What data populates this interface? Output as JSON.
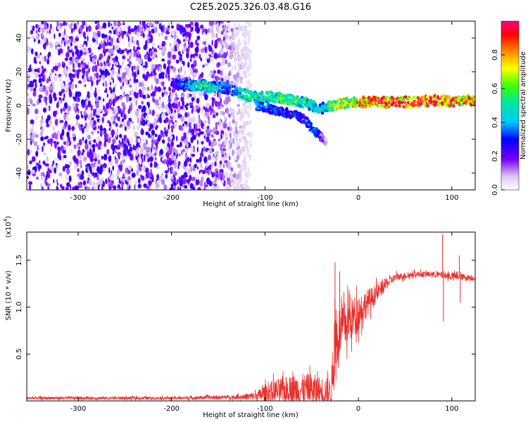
{
  "title": "C2E5.2025.326.03.48.G16",
  "chart_data": [
    {
      "type": "heatmap",
      "name": "spectrogram",
      "xlabel": "Height of straight line (km)",
      "ylabel": "Frequency (Hz)",
      "xlim": [
        -355,
        125
      ],
      "ylim": [
        -50,
        50
      ],
      "x_ticks": [
        -300,
        -200,
        -100,
        0,
        100
      ],
      "x_tick_labels": [
        "-300",
        "-200",
        "-100",
        "0",
        "100"
      ],
      "y_ticks": [
        -40,
        -20,
        0,
        20,
        40
      ],
      "y_tick_labels": [
        "-40",
        "-20",
        "0",
        "20",
        "40"
      ],
      "noise_region": {
        "x_from": -355,
        "x_to": -130,
        "level": 0.18
      },
      "ridge": [
        {
          "x": -200,
          "y": 13,
          "a": 0.25
        },
        {
          "x": -190,
          "y": 12,
          "a": 0.35
        },
        {
          "x": -180,
          "y": 12,
          "a": 0.45
        },
        {
          "x": -170,
          "y": 12,
          "a": 0.55
        },
        {
          "x": -160,
          "y": 11,
          "a": 0.5
        },
        {
          "x": -150,
          "y": 11,
          "a": 0.45
        },
        {
          "x": -140,
          "y": 10,
          "a": 0.35
        },
        {
          "x": -130,
          "y": 8,
          "a": 0.45
        },
        {
          "x": -120,
          "y": 6,
          "a": 0.5
        },
        {
          "x": -110,
          "y": 5,
          "a": 0.5
        },
        {
          "x": -100,
          "y": 5,
          "a": 0.55
        },
        {
          "x": -90,
          "y": 5,
          "a": 0.55
        },
        {
          "x": -80,
          "y": 4,
          "a": 0.6
        },
        {
          "x": -70,
          "y": 3,
          "a": 0.6
        },
        {
          "x": -60,
          "y": 2,
          "a": 0.55
        },
        {
          "x": -50,
          "y": 0,
          "a": 0.5
        },
        {
          "x": -40,
          "y": -2,
          "a": 0.45
        },
        {
          "x": -30,
          "y": 0,
          "a": 0.6
        },
        {
          "x": -20,
          "y": 1,
          "a": 0.7
        },
        {
          "x": -10,
          "y": 2,
          "a": 0.75
        },
        {
          "x": 0,
          "y": 2,
          "a": 0.8
        },
        {
          "x": 20,
          "y": 2,
          "a": 0.9
        },
        {
          "x": 40,
          "y": 2,
          "a": 0.95
        },
        {
          "x": 60,
          "y": 2,
          "a": 0.95
        },
        {
          "x": 80,
          "y": 3,
          "a": 0.95
        },
        {
          "x": 90,
          "y": 3,
          "a": 0.9
        },
        {
          "x": 100,
          "y": 2,
          "a": 0.9
        },
        {
          "x": 110,
          "y": 3,
          "a": 0.85
        },
        {
          "x": 125,
          "y": 3,
          "a": 0.85
        }
      ],
      "branch": [
        {
          "x": -110,
          "y": 0,
          "a": 0.4
        },
        {
          "x": -95,
          "y": -2,
          "a": 0.35
        },
        {
          "x": -80,
          "y": -4,
          "a": 0.35
        },
        {
          "x": -65,
          "y": -6,
          "a": 0.3
        },
        {
          "x": -55,
          "y": -10,
          "a": 0.35
        },
        {
          "x": -50,
          "y": -14,
          "a": 0.4
        },
        {
          "x": -45,
          "y": -16,
          "a": 0.35
        },
        {
          "x": -35,
          "y": -22,
          "a": 0.1
        }
      ]
    },
    {
      "type": "colorbar",
      "name": "colorbar",
      "label": "Normalized spectral amplitude",
      "ylim": [
        0,
        1
      ],
      "ticks": [
        0.0,
        0.2,
        0.4,
        0.6,
        0.8
      ],
      "tick_labels": [
        "0.0",
        "0.2",
        "0.4",
        "0.6",
        "0.8"
      ]
    },
    {
      "type": "line",
      "name": "snr",
      "xlabel": "Height of straight line (km)",
      "ylabel": "SNR (10 * v/v)",
      "multiplier_label": "(x10",
      "multiplier_exp": "4",
      "multiplier_close": ")",
      "xlim": [
        -355,
        125
      ],
      "ylim": [
        0,
        1.8
      ],
      "x_ticks": [
        -300,
        -200,
        -100,
        0,
        100
      ],
      "x_tick_labels": [
        "-300",
        "-200",
        "-100",
        "0",
        "100"
      ],
      "y_ticks": [
        0.5,
        1.0,
        1.5
      ],
      "y_tick_labels": [
        "0.5",
        "1.0",
        "1.5"
      ],
      "color": "#e8302c",
      "envelope": [
        {
          "x": -355,
          "base": 0.03,
          "amp": 0.02
        },
        {
          "x": -200,
          "base": 0.03,
          "amp": 0.02
        },
        {
          "x": -130,
          "base": 0.04,
          "amp": 0.03
        },
        {
          "x": -110,
          "base": 0.05,
          "amp": 0.06
        },
        {
          "x": -100,
          "base": 0.08,
          "amp": 0.12
        },
        {
          "x": -90,
          "base": 0.1,
          "amp": 0.16
        },
        {
          "x": -70,
          "base": 0.12,
          "amp": 0.2
        },
        {
          "x": -50,
          "base": 0.12,
          "amp": 0.22
        },
        {
          "x": -40,
          "base": 0.1,
          "amp": 0.2
        },
        {
          "x": -30,
          "base": 0.1,
          "amp": 0.18
        },
        {
          "x": -28,
          "base": 0.2,
          "amp": 0.3
        },
        {
          "x": -25,
          "base": 0.6,
          "amp": 0.5
        },
        {
          "x": -20,
          "base": 0.75,
          "amp": 0.35
        },
        {
          "x": -10,
          "base": 0.85,
          "amp": 0.3
        },
        {
          "x": 0,
          "base": 0.95,
          "amp": 0.25
        },
        {
          "x": 10,
          "base": 1.05,
          "amp": 0.18
        },
        {
          "x": 20,
          "base": 1.15,
          "amp": 0.12
        },
        {
          "x": 30,
          "base": 1.25,
          "amp": 0.08
        },
        {
          "x": 40,
          "base": 1.32,
          "amp": 0.05
        },
        {
          "x": 60,
          "base": 1.35,
          "amp": 0.04
        },
        {
          "x": 80,
          "base": 1.35,
          "amp": 0.04
        },
        {
          "x": 100,
          "base": 1.33,
          "amp": 0.05
        },
        {
          "x": 125,
          "base": 1.31,
          "amp": 0.04
        }
      ],
      "spikes": [
        {
          "x": -25,
          "y": 1.48
        },
        {
          "x": -20,
          "y": 1.38
        },
        {
          "x": -10,
          "y": 1.18
        },
        {
          "x": 90,
          "y": 1.78
        },
        {
          "x": 91,
          "y": 0.85
        },
        {
          "x": 108,
          "y": 1.55
        },
        {
          "x": 109,
          "y": 1.05
        }
      ]
    }
  ]
}
